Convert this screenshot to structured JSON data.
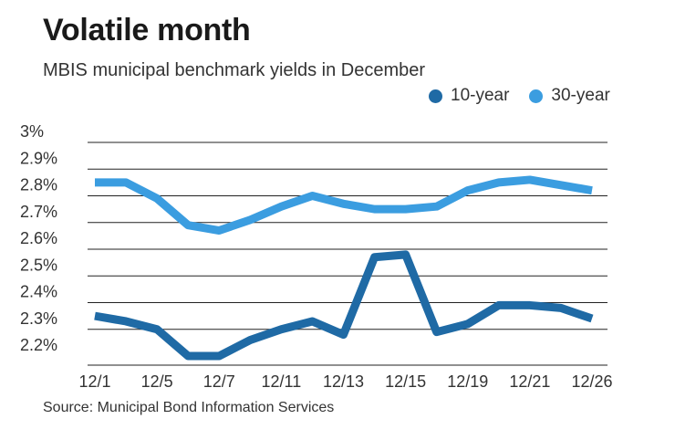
{
  "title": "Volatile month",
  "subtitle": "MBIS municipal benchmark yields in December",
  "source": "Source: Municipal Bond Information Services",
  "legend": [
    {
      "label": "10-year",
      "color": "#1f6aa5"
    },
    {
      "label": "30-year",
      "color": "#3b9de0"
    }
  ],
  "chart_data": {
    "type": "line",
    "title": "Volatile month",
    "subtitle": "MBIS municipal benchmark yields in December",
    "xlabel": "",
    "ylabel": "",
    "ylim": [
      2.2,
      3.0
    ],
    "grid": true,
    "legend_position": "top-right",
    "y_ticks": [
      {
        "value": 3.0,
        "label": "3%"
      },
      {
        "value": 2.9,
        "label": "2.9%"
      },
      {
        "value": 2.8,
        "label": "2.8%"
      },
      {
        "value": 2.7,
        "label": "2.7%"
      },
      {
        "value": 2.6,
        "label": "2.6%"
      },
      {
        "value": 2.5,
        "label": "2.5%"
      },
      {
        "value": 2.4,
        "label": "2.4%"
      },
      {
        "value": 2.3,
        "label": "2.3%"
      },
      {
        "value": 2.2,
        "label": "2.2%"
      }
    ],
    "x_tick_labels": [
      {
        "index": 0,
        "label": "12/1"
      },
      {
        "index": 2,
        "label": "12/5"
      },
      {
        "index": 4,
        "label": "12/7"
      },
      {
        "index": 6,
        "label": "12/11"
      },
      {
        "index": 8,
        "label": "12/13"
      },
      {
        "index": 10,
        "label": "12/15"
      },
      {
        "index": 12,
        "label": "12/19"
      },
      {
        "index": 14,
        "label": "12/21"
      },
      {
        "index": 16,
        "label": "12/26"
      }
    ],
    "num_points": 17,
    "series": [
      {
        "name": "10-year",
        "color": "#1f6aa5",
        "values": [
          2.35,
          2.33,
          2.3,
          2.2,
          2.2,
          2.26,
          2.3,
          2.33,
          2.28,
          2.57,
          2.58,
          2.29,
          2.32,
          2.39,
          2.39,
          2.38,
          2.34
        ]
      },
      {
        "name": "30-year",
        "color": "#3b9de0",
        "values": [
          2.85,
          2.85,
          2.79,
          2.69,
          2.67,
          2.71,
          2.76,
          2.8,
          2.77,
          2.75,
          2.75,
          2.76,
          2.82,
          2.85,
          2.86,
          2.84,
          2.82
        ]
      }
    ]
  }
}
